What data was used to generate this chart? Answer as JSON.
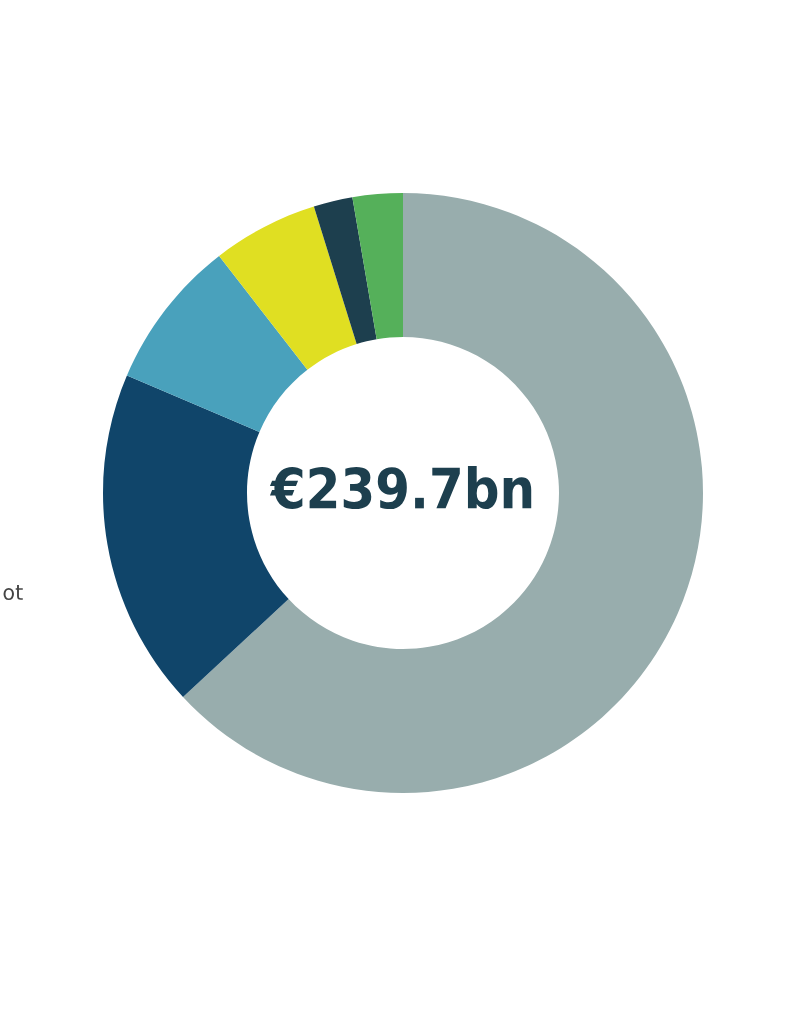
{
  "chart_data": {
    "type": "donut",
    "categories": [
      null,
      null,
      null,
      null,
      null,
      null
    ],
    "values": [
      63.1,
      18.3,
      8.1,
      5.7,
      2.1,
      2.7
    ],
    "colors": [
      "#98adad",
      "#10456a",
      "#49a1bc",
      "#e0df22",
      "#1d3f4e",
      "#55b05a"
    ],
    "annotations": [
      "€239.7bn",
      "ot"
    ]
  }
}
